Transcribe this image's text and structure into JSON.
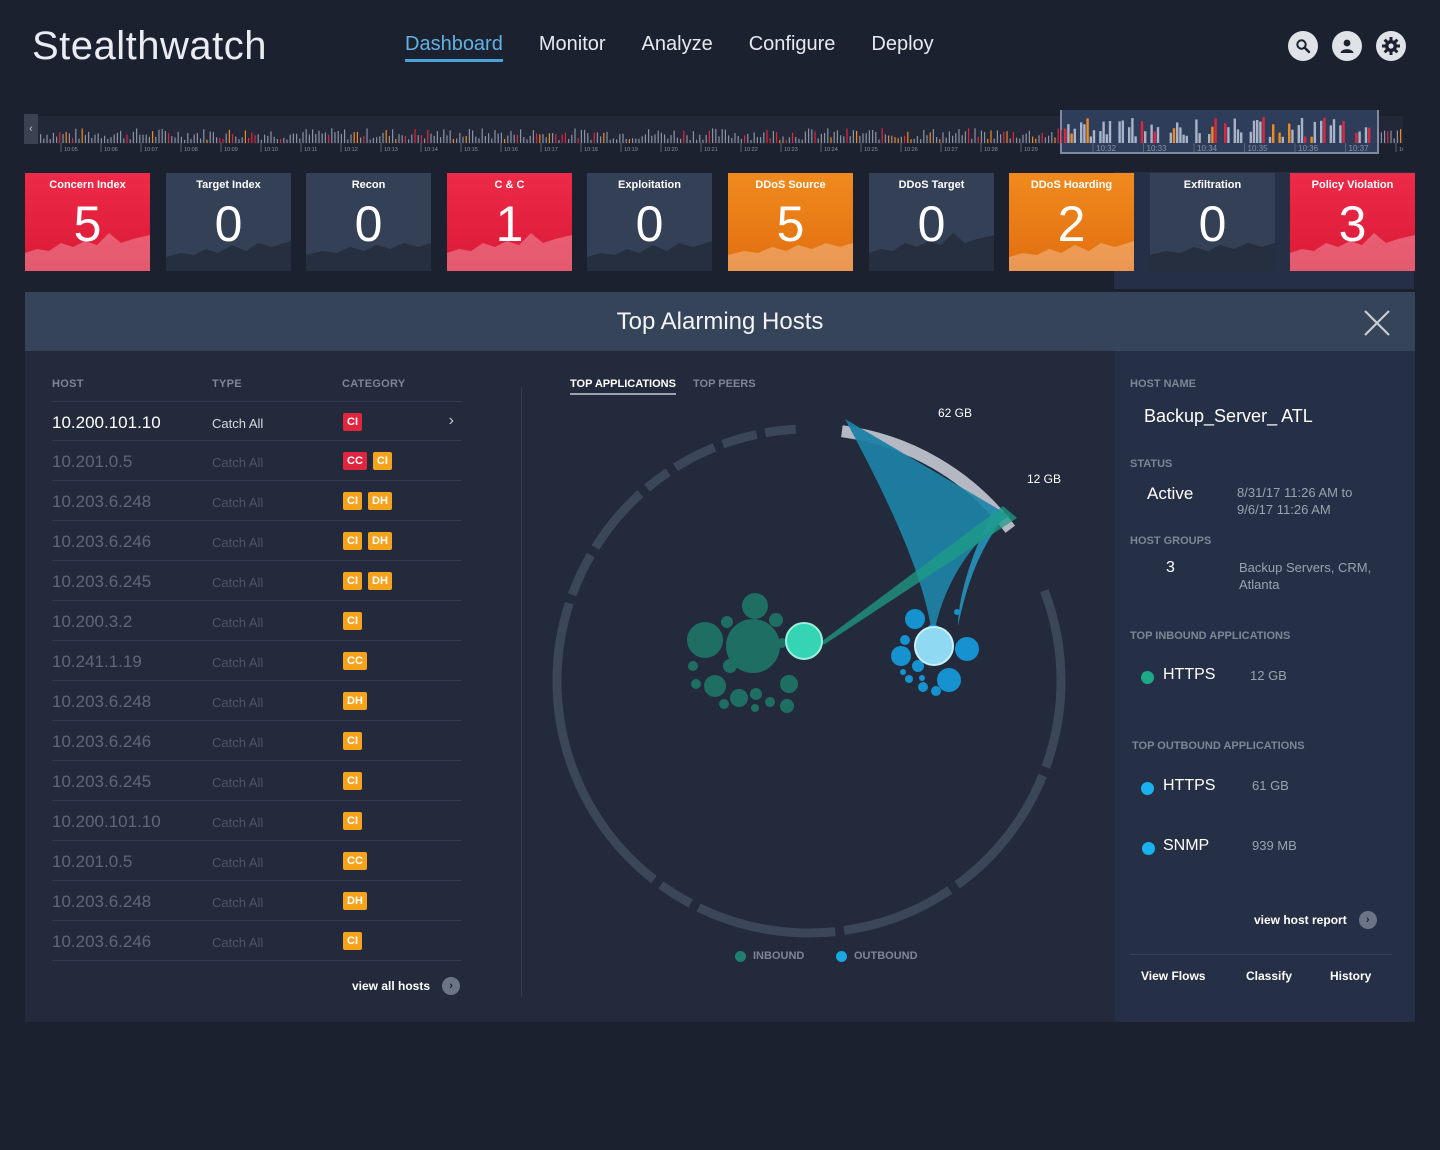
{
  "app": {
    "title": "Stealthwatch"
  },
  "nav": [
    {
      "label": "Dashboard",
      "active": true
    },
    {
      "label": "Monitor"
    },
    {
      "label": "Analyze"
    },
    {
      "label": "Configure"
    },
    {
      "label": "Deploy"
    }
  ],
  "header_icons": [
    "search-icon",
    "user-icon",
    "gear-icon"
  ],
  "timeline": {
    "ticks": [
      "10:05",
      "10:06",
      "10:07",
      "10:08",
      "10:09",
      "10:10",
      "10:11",
      "10:12",
      "10:13",
      "10:14",
      "10:15",
      "10:16",
      "10:17",
      "10:18",
      "10:19",
      "10:20",
      "10:21",
      "10:22",
      "10:23",
      "10:24",
      "10:25",
      "10:26",
      "10:27",
      "10:28",
      "10:29",
      "10:32",
      "10:33",
      "10:34",
      "10:35",
      "10:36",
      "10:37",
      "10:38"
    ]
  },
  "tiles": [
    {
      "label": "Concern Index",
      "value": "5",
      "color": "red"
    },
    {
      "label": "Target Index",
      "value": "0",
      "color": "gray"
    },
    {
      "label": "Recon",
      "value": "0",
      "color": "gray"
    },
    {
      "label": "C & C",
      "value": "1",
      "color": "red"
    },
    {
      "label": "Exploitation",
      "value": "0",
      "color": "gray"
    },
    {
      "label": "DDoS Source",
      "value": "5",
      "color": "orange"
    },
    {
      "label": "DDoS Target",
      "value": "0",
      "color": "gray"
    },
    {
      "label": "DDoS Hoarding",
      "value": "2",
      "color": "orange"
    },
    {
      "label": "Exfiltration",
      "value": "0",
      "color": "gray"
    },
    {
      "label": "Policy Violation",
      "value": "3",
      "color": "red"
    }
  ],
  "panel": {
    "title": "Top Alarming Hosts",
    "columns": {
      "host": "HOST",
      "type": "TYPE",
      "category": "CATEGORY"
    },
    "hosts": [
      {
        "ip": "10.200.101.10",
        "type": "Catch All",
        "cats": [
          {
            "t": "CI",
            "c": "red"
          }
        ],
        "selected": true
      },
      {
        "ip": "10.201.0.5",
        "type": "Catch All",
        "cats": [
          {
            "t": "CC",
            "c": "red"
          },
          {
            "t": "CI",
            "c": "orange"
          }
        ]
      },
      {
        "ip": "10.203.6.248",
        "type": "Catch All",
        "cats": [
          {
            "t": "CI",
            "c": "orange"
          },
          {
            "t": "DH",
            "c": "orange"
          }
        ]
      },
      {
        "ip": "10.203.6.246",
        "type": "Catch All",
        "cats": [
          {
            "t": "CI",
            "c": "orange"
          },
          {
            "t": "DH",
            "c": "orange"
          }
        ]
      },
      {
        "ip": "10.203.6.245",
        "type": "Catch All",
        "cats": [
          {
            "t": "CI",
            "c": "orange"
          },
          {
            "t": "DH",
            "c": "orange"
          }
        ]
      },
      {
        "ip": "10.200.3.2",
        "type": "Catch All",
        "cats": [
          {
            "t": "CI",
            "c": "orange"
          }
        ]
      },
      {
        "ip": "10.241.1.19",
        "type": "Catch All",
        "cats": [
          {
            "t": "CC",
            "c": "orange"
          }
        ]
      },
      {
        "ip": "10.203.6.248",
        "type": "Catch All",
        "cats": [
          {
            "t": "DH",
            "c": "orange"
          }
        ]
      },
      {
        "ip": "10.203.6.246",
        "type": "Catch All",
        "cats": [
          {
            "t": "CI",
            "c": "orange"
          }
        ]
      },
      {
        "ip": "10.203.6.245",
        "type": "Catch All",
        "cats": [
          {
            "t": "CI",
            "c": "orange"
          }
        ]
      },
      {
        "ip": "10.200.101.10",
        "type": "Catch All",
        "cats": [
          {
            "t": "CI",
            "c": "orange"
          }
        ]
      },
      {
        "ip": "10.201.0.5",
        "type": "Catch All",
        "cats": [
          {
            "t": "CC",
            "c": "orange"
          }
        ]
      },
      {
        "ip": "10.203.6.248",
        "type": "Catch All",
        "cats": [
          {
            "t": "DH",
            "c": "orange"
          }
        ]
      },
      {
        "ip": "10.203.6.246",
        "type": "Catch All",
        "cats": [
          {
            "t": "CI",
            "c": "orange"
          }
        ]
      }
    ],
    "view_all": "view all hosts",
    "center": {
      "tabs": [
        {
          "label": "TOP APPLICATIONS",
          "active": true
        },
        {
          "label": "TOP PEERS"
        }
      ],
      "arc_labels": {
        "outer": "62 GB",
        "inner": "12 GB"
      },
      "legend": {
        "inbound": "INBOUND",
        "outbound": "OUTBOUND"
      },
      "colors": {
        "inbound": "#1f9e89",
        "outbound": "#1aa8e0"
      }
    },
    "details": {
      "host_name_label": "HOST NAME",
      "host_name": "Backup_Server_ ATL",
      "status_label": "STATUS",
      "status": "Active",
      "status_range_1": "8/31/17 11:26 AM to",
      "status_range_2": "9/6/17 11:26 AM",
      "host_groups_label": "HOST GROUPS",
      "host_groups_count": "3",
      "host_groups_1": "Backup Servers, CRM,",
      "host_groups_2": "Atlanta",
      "inbound_label": "TOP INBOUND APPLICATIONS",
      "inbound": [
        {
          "name": "HTTPS",
          "size": "12 GB"
        }
      ],
      "outbound_label": "TOP OUTBOUND APPLICATIONS",
      "outbound": [
        {
          "name": "HTTPS",
          "size": "61 GB"
        },
        {
          "name": "SNMP",
          "size": "939 MB"
        }
      ],
      "report_link": "view host report",
      "actions": [
        "View Flows",
        "Classify",
        "History"
      ]
    }
  }
}
